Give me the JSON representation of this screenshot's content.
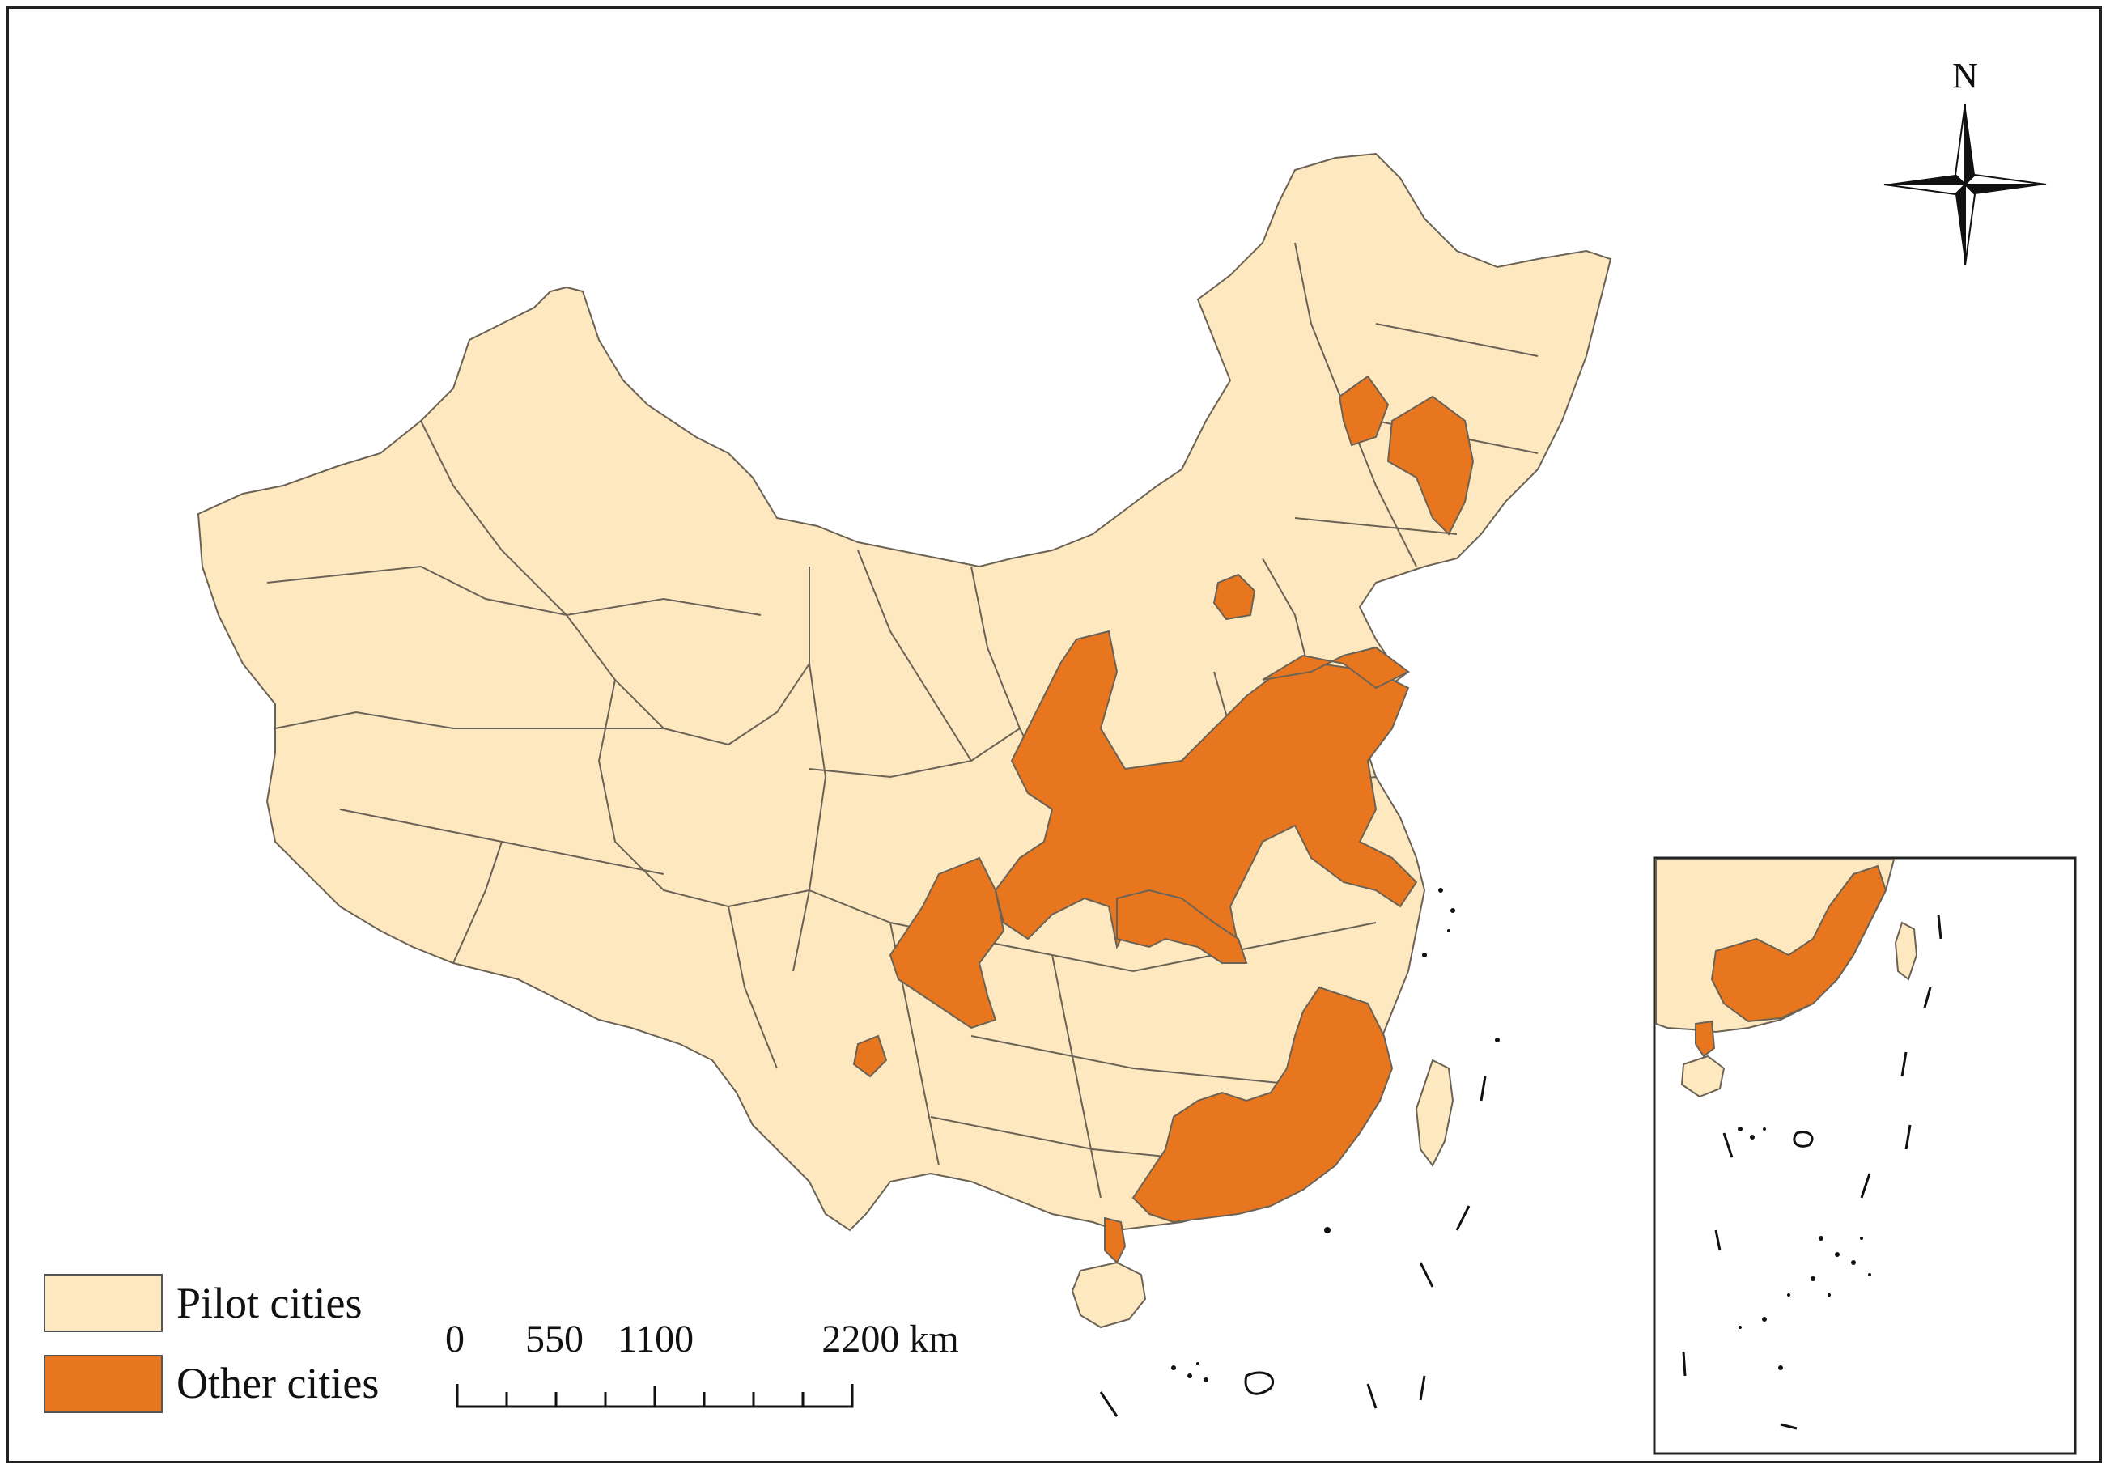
{
  "colors": {
    "pilot": "#FDE8BF",
    "other": "#E8761E",
    "boundary": "#6b6256",
    "frame": "#222222"
  },
  "legend": {
    "items": [
      {
        "label": "Pilot cities",
        "color": "#FDE8BF"
      },
      {
        "label": "Other cities",
        "color": "#E8761E"
      }
    ]
  },
  "scale_bar": {
    "labels": [
      "0",
      "550",
      "1100",
      "2200 km"
    ]
  },
  "north_arrow": {
    "label": "N",
    "icon": "compass-rose-icon"
  },
  "inset": {
    "description_icon": "south-china-sea-inset"
  }
}
